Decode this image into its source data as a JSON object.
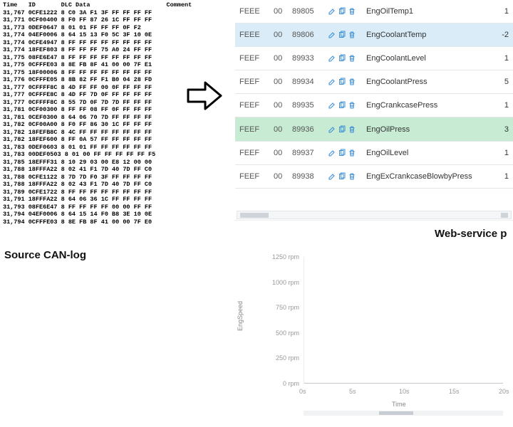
{
  "canlog": {
    "header": "Time   ID       DLC Data                     Comment",
    "rows": [
      "31,767 0CFE1222 8 C0 3A F1 3F FF FF FF FF",
      "31,771 0CF00400 8 F0 FF 87 26 1C FF FF FF",
      "31,773 0DEF0647 8 01 01 FF FF FF 0F F2",
      "31,774 04EF0006 8 64 15 13 F0 5C 3F 10 0E",
      "31,774 0CFE4947 8 FF FF FF FF FF FF FF FF",
      "31,774 18FEF803 8 FF FF FF 75 A0 24 FF FF",
      "31,775 08FE6E47 8 FF FF FF FF FF FF FF FF",
      "31,775 0CFFFE03 8 8E FB 8F 41 00 00 7F E1",
      "31,775 18F00006 8 FF FF FF FF FF FF FF FF",
      "31,776 0CFFFE05 8 8B 82 FF F1 B0 04 28 FD",
      "31,777 0CFFFF8C 8 4D FF FF 00 0F FF FF FF",
      "31,777 0CFFFE8C 8 4D FF 7D 0F FF FF FF FF",
      "31,777 0CFFFF8C 8 55 7D 0F 7D 7D FF FF FF",
      "31,781 0CF00300 8 FF FF 08 FF 0F FF FF FF",
      "31,781 0CEF0300 8 64 06 70 7D FF FF FF FF",
      "31,782 0CF00A00 8 F0 FF 86 30 1C FF FF FF",
      "31,782 18FEFB8C 8 4C FF FF FF FF FF FF FF",
      "31,782 18FEF600 8 FF 0A 57 FF FF FF FF FF",
      "31,783 0DEF0603 8 01 01 FF FF FF FF FF FF",
      "31,783 00DEF0503 8 01 00 FF FF FF FF FF F5",
      "31,785 18EFFF31 8 10 29 03 00 E8 12 00 00",
      "31,788 18FFFA22 8 02 41 F1 7D 40 7D FF C0",
      "31,788 0CFE1122 8 7D 7D F0 3F FF FF FF FF",
      "31,788 18FFFA22 8 02 43 F1 7D 40 7D FF C0",
      "31,789 0CFE1722 8 FF FF FF FF FF FF FF FF",
      "31,791 18FFFA22 8 64 06 36 1C FF FF FF FF",
      "31,793 08FE6E47 8 FF FF FF FF 00 00 FF FF",
      "31,794 04EF0006 8 64 15 14 F0 B8 3E 10 0E",
      "31,794 0CFFFE03 8 8E FB 8F 41 00 00 7F E0"
    ]
  },
  "source_label": "Source CAN-log",
  "webservice_label": "Web-service p",
  "table": {
    "rows": [
      {
        "pgn": "FEEE",
        "sa": "00",
        "id": "89805",
        "name": "EngOilTemp1",
        "val": "1",
        "hl": ""
      },
      {
        "pgn": "FEEE",
        "sa": "00",
        "id": "89806",
        "name": "EngCoolantTemp",
        "val": "-2",
        "hl": "blue"
      },
      {
        "pgn": "FEEF",
        "sa": "00",
        "id": "89933",
        "name": "EngCoolantLevel",
        "val": "1",
        "hl": ""
      },
      {
        "pgn": "FEEF",
        "sa": "00",
        "id": "89934",
        "name": "EngCoolantPress",
        "val": "5",
        "hl": ""
      },
      {
        "pgn": "FEEF",
        "sa": "00",
        "id": "89935",
        "name": "EngCrankcasePress",
        "val": "1",
        "hl": ""
      },
      {
        "pgn": "FEEF",
        "sa": "00",
        "id": "89936",
        "name": "EngOilPress",
        "val": "3",
        "hl": "green"
      },
      {
        "pgn": "FEEF",
        "sa": "00",
        "id": "89937",
        "name": "EngOilLevel",
        "val": "1",
        "hl": ""
      },
      {
        "pgn": "FEEF",
        "sa": "00",
        "id": "89938",
        "name": "EngExCrankcaseBlowbyPress",
        "val": "1",
        "hl": ""
      }
    ],
    "action_color": "#3d8fd6"
  },
  "chart": {
    "ylabel": "EngSpeed",
    "yticks": [
      "1250 rpm",
      "1000 rpm",
      "750 rpm",
      "500 rpm",
      "250 rpm",
      "0 rpm"
    ],
    "xticks": [
      "0s",
      "5s",
      "10s",
      "15s",
      "20s"
    ],
    "xlabel": "Time"
  }
}
